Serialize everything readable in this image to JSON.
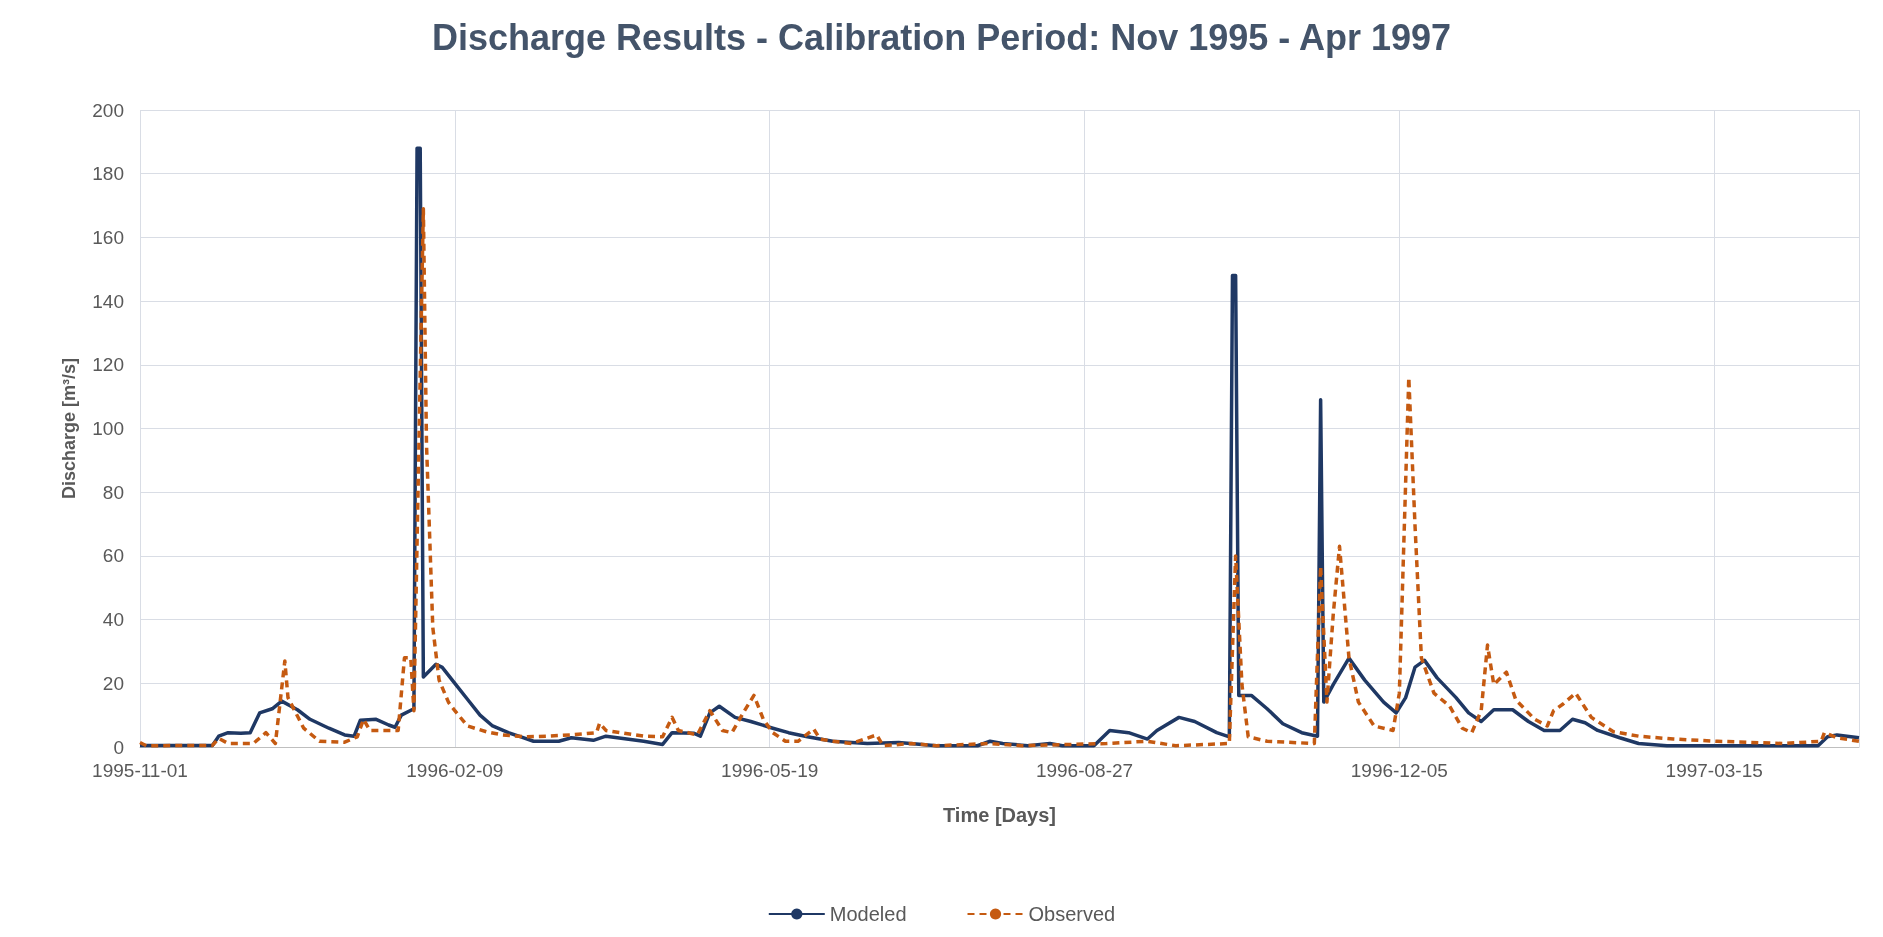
{
  "chart_data": {
    "type": "line",
    "title": "Discharge Results - Calibration Period: Nov 1995 - Apr 1997",
    "xlabel": "Time [Days]",
    "ylabel": "Discharge [m³/s]",
    "xlim": [
      "1995-11-01",
      "1997-04-30"
    ],
    "xticks": [
      "1995-11-01",
      "1996-02-09",
      "1996-05-19",
      "1996-08-27",
      "1996-12-05",
      "1997-03-15"
    ],
    "ylim": [
      0,
      200
    ],
    "yticks": [
      0,
      20,
      40,
      60,
      80,
      100,
      120,
      140,
      160,
      180,
      200
    ],
    "grid": true,
    "legend": "bottom",
    "series": [
      {
        "name": "Modeled",
        "color": "#1f3864",
        "line_style": "solid",
        "x": [
          "1995-11-01",
          "1995-11-24",
          "1995-11-26",
          "1995-11-29",
          "1995-12-03",
          "1995-12-06",
          "1995-12-09",
          "1995-12-13",
          "1995-12-16",
          "1995-12-21",
          "1995-12-25",
          "1995-12-31",
          "1996-01-05",
          "1996-01-08",
          "1996-01-10",
          "1996-01-15",
          "1996-01-19",
          "1996-01-21",
          "1996-01-23",
          "1996-01-27",
          "1996-01-28",
          "1996-01-29",
          "1996-01-30",
          "1996-02-03",
          "1996-02-05",
          "1996-02-09",
          "1996-02-13",
          "1996-02-17",
          "1996-02-21",
          "1996-02-26",
          "1996-03-01",
          "1996-03-05",
          "1996-03-13",
          "1996-03-17",
          "1996-03-24",
          "1996-03-28",
          "1996-04-09",
          "1996-04-15",
          "1996-04-18",
          "1996-04-25",
          "1996-04-27",
          "1996-04-30",
          "1996-05-03",
          "1996-05-08",
          "1996-05-13",
          "1996-05-20",
          "1996-05-25",
          "1996-05-31",
          "1996-06-08",
          "1996-06-19",
          "1996-06-29",
          "1996-07-11",
          "1996-07-24",
          "1996-07-28",
          "1996-08-01",
          "1996-08-09",
          "1996-08-16",
          "1996-08-20",
          "1996-08-30",
          "1996-09-04",
          "1996-09-10",
          "1996-09-16",
          "1996-09-19",
          "1996-09-26",
          "1996-10-01",
          "1996-10-08",
          "1996-10-12",
          "1996-10-13",
          "1996-10-14",
          "1996-10-15",
          "1996-10-19",
          "1996-10-24",
          "1996-10-29",
          "1996-11-04",
          "1996-11-09",
          "1996-11-10",
          "1996-11-11",
          "1996-11-14",
          "1996-11-19",
          "1996-11-24",
          "1996-11-30",
          "1996-12-04",
          "1996-12-07",
          "1996-12-10",
          "1996-12-13",
          "1996-12-17",
          "1996-12-23",
          "1996-12-27",
          "1996-12-31",
          "1997-01-04",
          "1997-01-10",
          "1997-01-15",
          "1997-01-20",
          "1997-01-25",
          "1997-01-29",
          "1997-02-02",
          "1997-02-06",
          "1997-02-13",
          "1997-02-19",
          "1997-02-28",
          "1997-04-17",
          "1997-04-20",
          "1997-04-23",
          "1997-04-30"
        ],
        "values": [
          0.5,
          0.5,
          3.4,
          4.5,
          4.3,
          4.5,
          10.7,
          12,
          14.4,
          11.7,
          8.7,
          5.9,
          3.8,
          3.4,
          8.4,
          8.7,
          6.9,
          6.2,
          10,
          12,
          188,
          188,
          22,
          26,
          25,
          20,
          15,
          10,
          6.6,
          4.5,
          3.2,
          1.8,
          1.8,
          2.9,
          2.1,
          3.4,
          1.8,
          0.8,
          4.5,
          4.3,
          3.4,
          10.7,
          12.8,
          9.3,
          8,
          5.9,
          4.5,
          3.2,
          1.8,
          1.1,
          1.4,
          0.4,
          0.4,
          1.8,
          1.1,
          0.4,
          1.1,
          0.4,
          0.4,
          5.2,
          4.5,
          2.5,
          5.2,
          9.3,
          8,
          4.5,
          3.2,
          148,
          148,
          16.2,
          16.2,
          12,
          7.3,
          4.5,
          3.4,
          109,
          14.1,
          19.6,
          27.9,
          21,
          14.1,
          10.7,
          15.5,
          25.1,
          27.2,
          21.7,
          15.5,
          10.7,
          8,
          11.7,
          11.7,
          8,
          5.2,
          5.2,
          8.7,
          7.6,
          5.2,
          2.9,
          1.1,
          0.4,
          0.4,
          3.2,
          3.8,
          2.9
        ]
      },
      {
        "name": "Observed",
        "color": "#c55a11",
        "line_style": "dashed",
        "x": [
          "1995-11-01",
          "1995-11-03",
          "1995-11-24",
          "1995-11-26",
          "1995-11-29",
          "1995-12-07",
          "1995-12-11",
          "1995-12-14",
          "1995-12-17",
          "1995-12-18",
          "1995-12-23",
          "1995-12-28",
          "1996-01-05",
          "1996-01-09",
          "1996-01-11",
          "1996-01-13",
          "1996-01-22",
          "1996-01-24",
          "1996-01-26",
          "1996-01-27",
          "1996-01-30",
          "1996-01-31",
          "1996-02-02",
          "1996-02-04",
          "1996-02-07",
          "1996-02-09",
          "1996-02-13",
          "1996-02-19",
          "1996-02-24",
          "1996-03-02",
          "1996-03-09",
          "1996-03-17",
          "1996-03-25",
          "1996-03-26",
          "1996-03-28",
          "1996-04-09",
          "1996-04-15",
          "1996-04-18",
          "1996-04-20",
          "1996-04-26",
          "1996-04-30",
          "1996-05-04",
          "1996-05-07",
          "1996-05-11",
          "1996-05-14",
          "1996-05-17",
          "1996-05-20",
          "1996-05-24",
          "1996-05-28",
          "1996-06-02",
          "1996-06-04",
          "1996-06-08",
          "1996-06-14",
          "1996-06-22",
          "1996-06-24",
          "1996-07-03",
          "1996-07-11",
          "1996-07-28",
          "1996-08-07",
          "1996-09-03",
          "1996-09-16",
          "1996-09-25",
          "1996-10-12",
          "1996-10-14",
          "1996-10-16",
          "1996-10-18",
          "1996-10-24",
          "1996-11-08",
          "1996-11-10",
          "1996-11-12",
          "1996-11-14",
          "1996-11-16",
          "1996-11-19",
          "1996-11-22",
          "1996-11-27",
          "1996-12-03",
          "1996-12-05",
          "1996-12-08",
          "1996-12-10",
          "1996-12-12",
          "1996-12-16",
          "1996-12-21",
          "1996-12-25",
          "1996-12-28",
          "1996-12-31",
          "1997-01-02",
          "1997-01-04",
          "1997-01-08",
          "1997-01-11",
          "1997-01-17",
          "1997-01-21",
          "1997-01-23",
          "1997-01-26",
          "1997-01-30",
          "1997-02-04",
          "1997-02-11",
          "1997-02-19",
          "1997-03-02",
          "1997-03-16",
          "1997-04-06",
          "1997-04-18",
          "1997-04-19",
          "1997-04-23",
          "1997-04-30"
        ],
        "values": [
          1.4,
          0.4,
          0.5,
          2.7,
          1.1,
          1.1,
          4.5,
          1.1,
          27,
          15.5,
          5.9,
          1.8,
          1.5,
          3.2,
          8.7,
          5.2,
          5.2,
          28,
          28,
          11.4,
          169,
          95,
          37.5,
          21,
          14,
          11.4,
          6.6,
          4.8,
          3.8,
          3.2,
          3.4,
          3.8,
          4.5,
          7.5,
          5.2,
          3.4,
          3.2,
          9.3,
          5.2,
          3.8,
          11.4,
          5.2,
          4.5,
          11.4,
          16.2,
          8.7,
          4.5,
          1.8,
          1.8,
          5.6,
          2.5,
          1.8,
          1.1,
          3.8,
          0.4,
          1.1,
          0.4,
          1.1,
          0.4,
          1.1,
          1.8,
          0.4,
          1.1,
          60,
          19.6,
          3.2,
          1.8,
          1.1,
          56.7,
          14.1,
          41.6,
          63,
          28,
          14.1,
          6.6,
          5.2,
          16.9,
          116,
          69,
          28,
          16.9,
          12.8,
          5.9,
          4.5,
          11.4,
          32,
          19.6,
          23.5,
          14.8,
          8.7,
          6.6,
          11.4,
          13.5,
          16.9,
          9.3,
          4.8,
          3.4,
          2.5,
          1.8,
          1.1,
          1.8,
          4.5,
          2.9,
          1.8
        ]
      }
    ]
  }
}
